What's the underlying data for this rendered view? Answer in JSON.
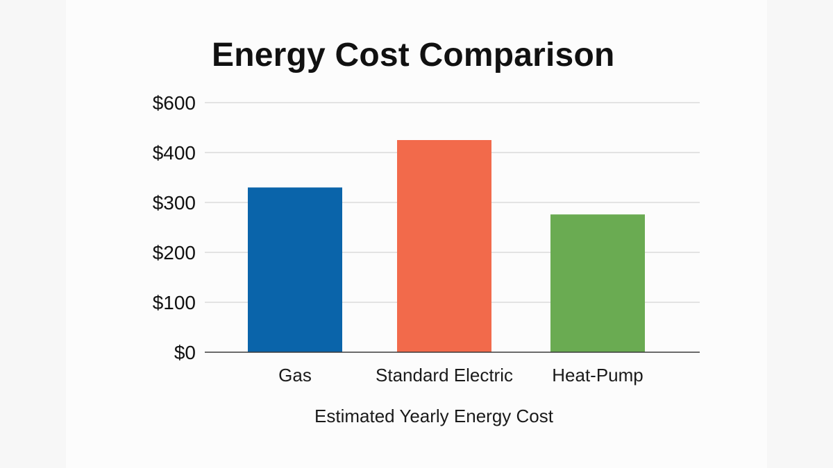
{
  "chart_data": {
    "type": "bar",
    "title": "Energy Cost Comparison",
    "xlabel": "Estimated Yearly Energy Cost",
    "ylabel": "",
    "categories": [
      "Gas",
      "Standard Electric",
      "Heat-Pump"
    ],
    "values": [
      330,
      450,
      276
    ],
    "colors": [
      "#0a64aa",
      "#f26a4b",
      "#6aab52"
    ],
    "y_ticks": [
      0,
      100,
      200,
      300,
      400,
      600
    ],
    "y_tick_labels": [
      "$0",
      "$100",
      "$200",
      "$300",
      "$400",
      "$600"
    ],
    "ylim": [
      0,
      600
    ],
    "grid": true,
    "legend": "none"
  }
}
